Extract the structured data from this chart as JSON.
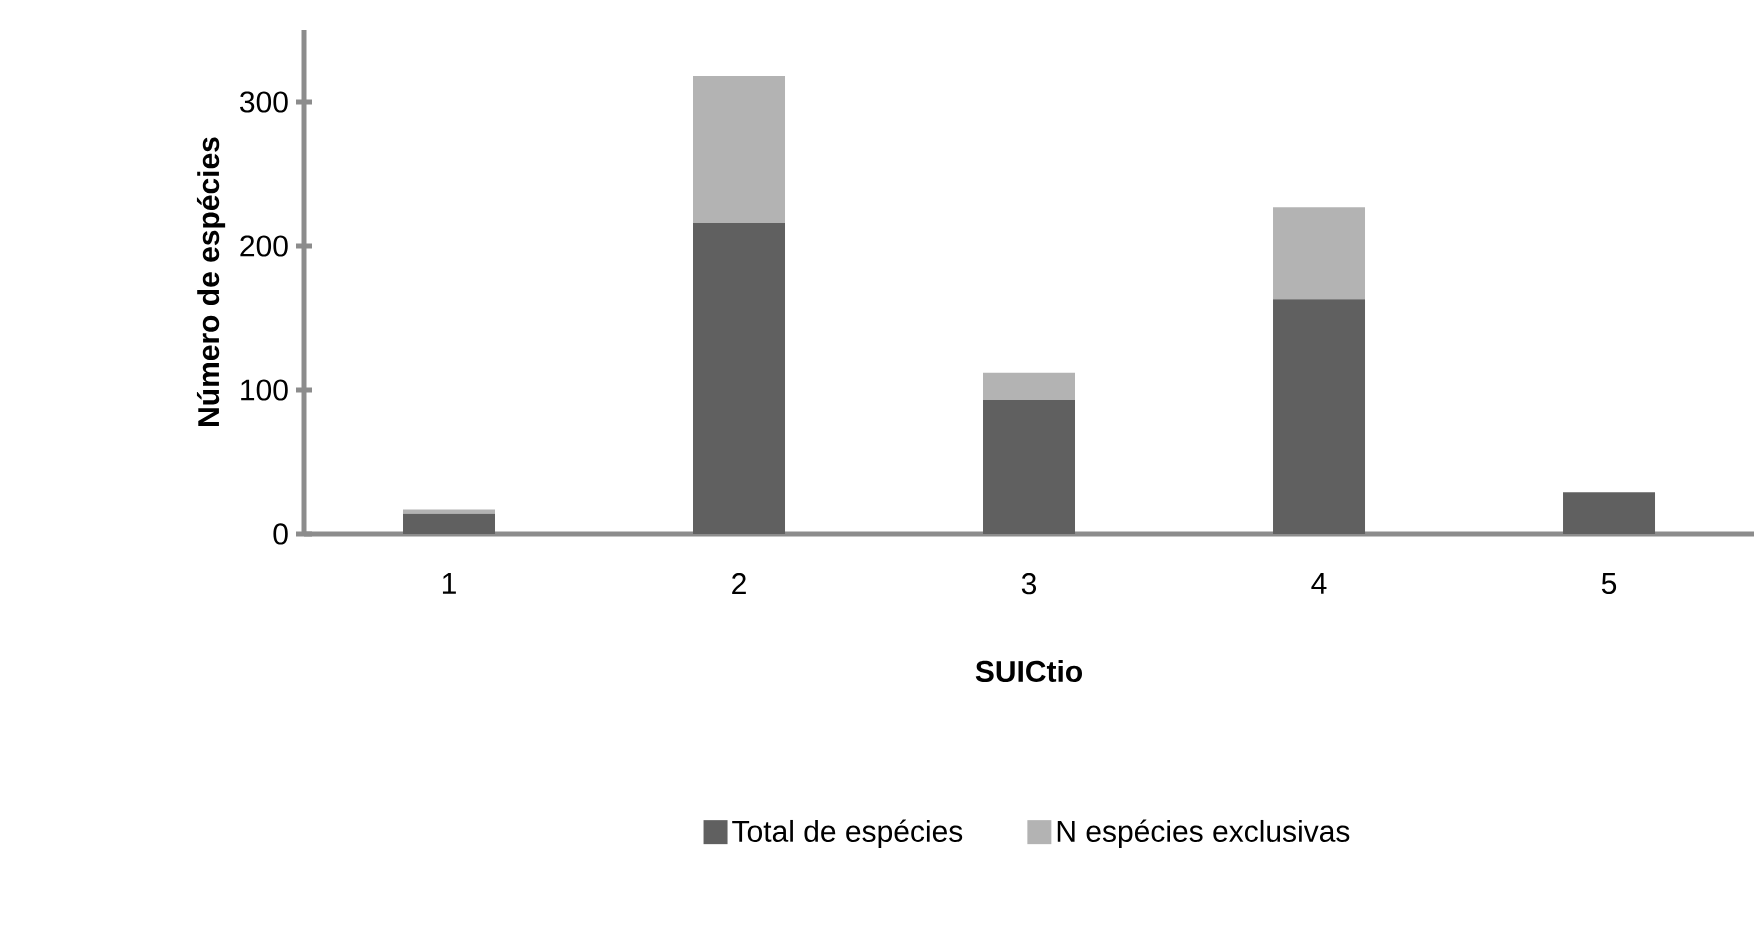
{
  "chart_data": {
    "type": "bar",
    "stacked": true,
    "xlabel": "SUICtio",
    "ylabel": "Número de espécies",
    "categories": [
      "1",
      "2",
      "3",
      "4",
      "5"
    ],
    "series": [
      {
        "name": "Total de espécies",
        "color": "#606060",
        "values": [
          14,
          216,
          93,
          163,
          29
        ]
      },
      {
        "name": "N espécies exclusivas",
        "color": "#b3b3b3",
        "values": [
          3,
          102,
          19,
          64,
          0
        ]
      }
    ],
    "ylim": [
      0,
      350
    ],
    "yticks": [
      0,
      100,
      200,
      300
    ],
    "grid": false,
    "legend": "bottom"
  }
}
